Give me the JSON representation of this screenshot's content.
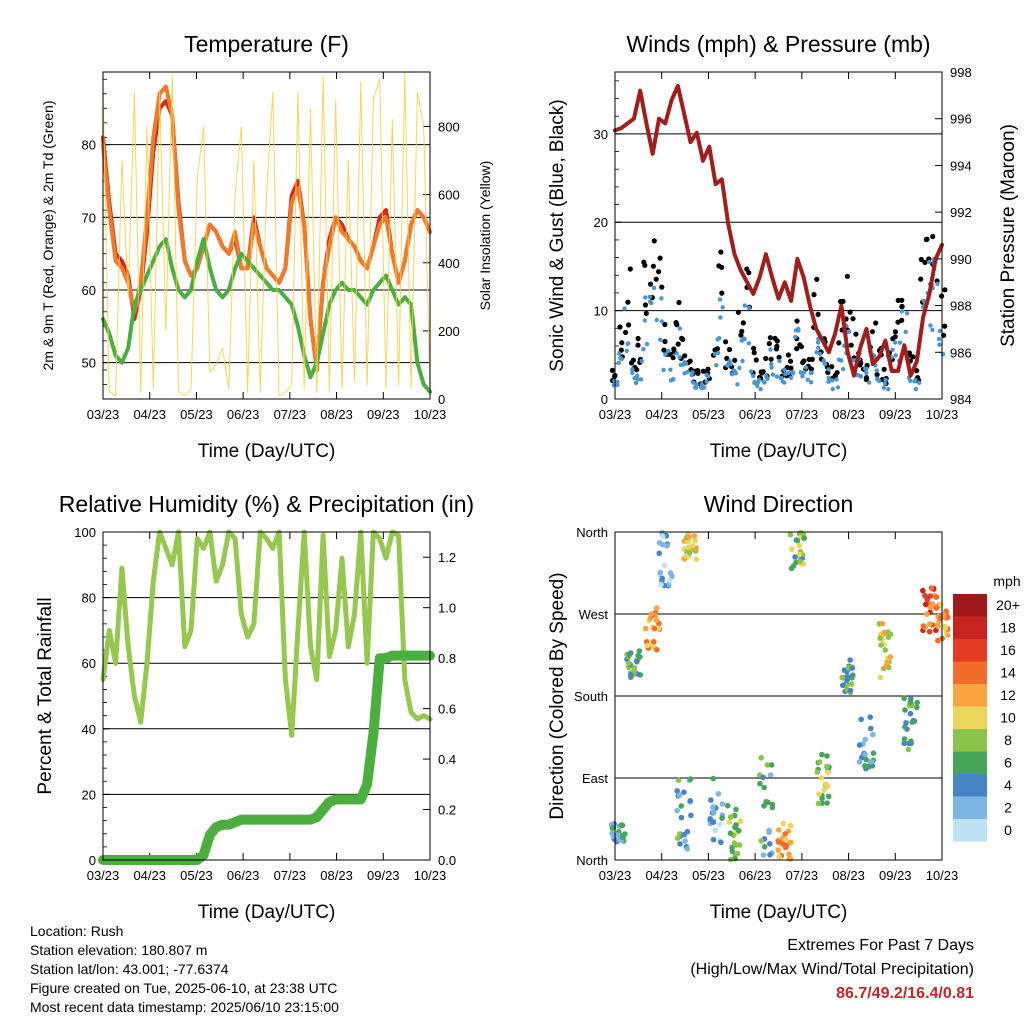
{
  "chart_data": [
    {
      "type": "line",
      "title": "Temperature (F)",
      "xlabel": "Time (Day/UTC)",
      "ylabel": "2m & 9m T (Red, Orange) & 2m Td (Green)",
      "ylabel_right": "Solar Insolation (Yellow)",
      "x_ticks": [
        "03/23",
        "04/23",
        "05/23",
        "06/23",
        "07/23",
        "08/23",
        "09/23",
        "10/23"
      ],
      "ylim": [
        45,
        90
      ],
      "y_ticks": [
        50,
        60,
        70,
        80
      ],
      "ylim_right": [
        0,
        960
      ],
      "y_ticks_right": [
        0,
        200,
        400,
        600,
        800
      ],
      "grid": "horizontal",
      "series": [
        {
          "color": "#d62718",
          "y_axis": "left",
          "values": [
            81,
            72,
            65,
            64,
            62,
            56,
            60,
            68,
            79,
            85,
            86,
            84,
            72,
            64,
            62,
            63,
            66,
            69,
            68,
            66,
            65,
            67,
            63,
            63,
            70,
            66,
            63,
            62,
            61,
            63,
            73,
            75,
            69,
            56,
            49,
            61,
            67,
            70,
            69,
            67,
            66,
            64,
            63,
            66,
            70,
            71,
            65,
            61,
            64,
            69,
            71,
            70,
            68
          ]
        },
        {
          "color": "#ef7a2c",
          "y_axis": "left",
          "values": [
            80,
            71,
            64,
            63,
            61,
            57,
            61,
            70,
            81,
            87,
            88,
            84,
            71,
            64,
            62,
            63,
            66,
            69,
            68,
            66,
            65,
            68,
            63,
            63,
            69,
            66,
            63,
            62,
            61,
            63,
            72,
            74,
            69,
            56,
            49,
            61,
            66,
            70,
            68,
            67,
            66,
            64,
            63,
            66,
            69,
            70,
            65,
            61,
            64,
            69,
            71,
            70,
            68
          ]
        },
        {
          "color": "#4aaf3e",
          "y_axis": "left",
          "values": [
            56,
            54,
            51,
            50,
            52,
            58,
            60,
            62,
            64,
            66,
            67,
            63,
            60,
            59,
            60,
            64,
            67,
            63,
            60,
            59,
            60,
            63,
            65,
            64,
            63,
            62,
            61,
            60,
            60,
            59,
            58,
            55,
            51,
            48,
            50,
            54,
            58,
            60,
            61,
            60,
            60,
            59,
            58,
            60,
            61,
            62,
            60,
            58,
            59,
            58,
            50,
            47,
            46
          ]
        },
        {
          "color": "#f4d24a",
          "y_axis": "right",
          "values": [
            900,
            20,
            10,
            700,
            300,
            900,
            20,
            800,
            30,
            900,
            200,
            950,
            20,
            10,
            30,
            650,
            800,
            80,
            100,
            150,
            30,
            600,
            800,
            20,
            700,
            20,
            600,
            900,
            10,
            20,
            40,
            900,
            30,
            850,
            20,
            950,
            20,
            880,
            30,
            700,
            50,
            930,
            40,
            880,
            940,
            30,
            820,
            40,
            970,
            30,
            900,
            800,
            20
          ]
        }
      ]
    },
    {
      "type": "scatter",
      "title": "Winds (mph) & Pressure (mb)",
      "xlabel": "Time (Day/UTC)",
      "ylabel": "Sonic Wind & Gust (Blue, Black)",
      "ylabel_right": "Station Pressure (Maroon)",
      "x_ticks": [
        "03/23",
        "04/23",
        "05/23",
        "06/23",
        "07/23",
        "08/23",
        "09/23",
        "10/23"
      ],
      "ylim": [
        0,
        37
      ],
      "y_ticks": [
        0,
        10,
        20,
        30
      ],
      "ylim_right": [
        984,
        998
      ],
      "y_ticks_right": [
        984,
        986,
        988,
        990,
        992,
        994,
        996,
        998
      ],
      "grid": "horizontal",
      "series": [
        {
          "color": "#000000",
          "y_axis": "left",
          "kind": "points",
          "values": [
            3,
            8,
            13,
            5,
            6,
            14,
            19,
            17,
            8,
            5,
            11,
            6,
            4,
            3,
            3,
            4,
            9,
            15,
            6,
            4,
            9,
            13,
            5,
            3,
            4,
            8,
            6,
            4,
            5,
            10,
            6,
            4,
            12,
            7,
            4,
            3,
            10,
            13,
            8,
            6,
            4,
            8,
            5,
            3,
            7,
            10,
            14,
            5,
            3,
            16,
            22,
            18,
            12
          ]
        },
        {
          "color": "#4b96d2",
          "y_axis": "left",
          "kind": "points",
          "values": [
            2,
            5,
            9,
            3,
            4,
            10,
            13,
            12,
            5,
            3,
            7,
            4,
            3,
            2,
            2,
            3,
            6,
            11,
            4,
            3,
            6,
            10,
            3,
            2,
            3,
            5,
            4,
            3,
            3,
            7,
            4,
            3,
            8,
            5,
            3,
            2,
            6,
            9,
            5,
            4,
            3,
            5,
            3,
            2,
            5,
            7,
            9,
            3,
            2,
            10,
            14,
            14,
            9
          ]
        },
        {
          "color": "#a11e1e",
          "y_axis": "right",
          "kind": "line",
          "values": [
            995.5,
            995.6,
            995.8,
            996,
            997.2,
            995.8,
            994.5,
            996,
            995.8,
            996.8,
            997.4,
            996.2,
            995,
            995.4,
            994.2,
            994.8,
            993.2,
            993.4,
            991.5,
            990.2,
            989.5,
            989,
            988.5,
            989.2,
            990.2,
            989.2,
            988.3,
            989,
            988.2,
            990,
            989.2,
            988,
            987,
            986.5,
            986,
            986.8,
            988,
            986,
            985,
            986.2,
            987,
            985.5,
            985.8,
            986.5,
            985.2,
            985.2,
            986.3,
            985,
            985.6,
            987.5,
            988.5,
            990,
            990.6
          ]
        }
      ]
    },
    {
      "type": "line",
      "title": "Relative Humidity (%) & Precipitation (in)",
      "xlabel": "Time (Day/UTC)",
      "ylabel": "Percent & Total Rainfall",
      "x_ticks": [
        "03/23",
        "04/23",
        "05/23",
        "06/23",
        "07/23",
        "08/23",
        "09/23",
        "10/23"
      ],
      "ylim": [
        0,
        100
      ],
      "y_ticks": [
        0,
        20,
        40,
        60,
        80,
        100
      ],
      "ylim_right": [
        0,
        1.3
      ],
      "y_ticks_right": [
        "0.0",
        "0.2",
        "0.4",
        "0.6",
        "0.8",
        "1.0",
        "1.2"
      ],
      "grid": "horizontal",
      "series": [
        {
          "color": "#96c850",
          "y_axis": "left",
          "values": [
            55,
            70,
            60,
            89,
            65,
            50,
            42,
            60,
            85,
            100,
            95,
            90,
            100,
            65,
            70,
            98,
            95,
            100,
            85,
            90,
            100,
            98,
            75,
            68,
            72,
            100,
            98,
            95,
            100,
            55,
            38,
            70,
            100,
            65,
            55,
            99,
            62,
            70,
            92,
            65,
            75,
            100,
            60,
            100,
            98,
            92,
            100,
            99,
            55,
            45,
            43,
            44,
            43
          ]
        },
        {
          "color": "#4aaf3e",
          "y_axis": "right",
          "values": [
            0,
            0,
            0,
            0,
            0,
            0,
            0,
            0,
            0,
            0,
            0,
            0,
            0,
            0,
            0,
            0,
            0.02,
            0.1,
            0.13,
            0.14,
            0.14,
            0.15,
            0.16,
            0.16,
            0.16,
            0.16,
            0.16,
            0.16,
            0.16,
            0.16,
            0.16,
            0.16,
            0.16,
            0.16,
            0.17,
            0.2,
            0.23,
            0.24,
            0.24,
            0.24,
            0.24,
            0.24,
            0.3,
            0.5,
            0.8,
            0.8,
            0.81,
            0.81,
            0.81,
            0.81,
            0.81,
            0.81,
            0.81
          ]
        }
      ]
    },
    {
      "type": "scatter",
      "title": "Wind Direction",
      "xlabel": "Time (Day/UTC)",
      "ylabel": "Direction (Colored By Speed)",
      "x_ticks": [
        "03/23",
        "04/23",
        "05/23",
        "06/23",
        "07/23",
        "08/23",
        "09/23",
        "10/23"
      ],
      "y_ticks": [
        "North",
        "East",
        "South",
        "West",
        "North"
      ],
      "ylim": [
        0,
        360
      ],
      "grid": "horizontal",
      "colorbar_title": "mph",
      "colorbar_labels": [
        "20+",
        "18",
        "16",
        "14",
        "12",
        "10",
        "8",
        "6",
        "4",
        "2",
        "0"
      ],
      "colorbar_colors": [
        "#9e1a1a",
        "#c8241f",
        "#e33d26",
        "#f26c2c",
        "#f9a440",
        "#ead659",
        "#8cc34a",
        "#45a65a",
        "#4584c6",
        "#7cb6e3",
        "#bfe2f5"
      ],
      "clusters": [
        {
          "t": 0.5,
          "dir": [
            20,
            40,
            140,
            150
          ],
          "speed": 4
        },
        {
          "t": 3,
          "dir": [
            200,
            230
          ],
          "speed": 6
        },
        {
          "t": 6,
          "dir": [
            230,
            280
          ],
          "speed": 12
        },
        {
          "t": 8,
          "dir": [
            300,
            360
          ],
          "speed": 2
        },
        {
          "t": 11,
          "dir": [
            5,
            90
          ],
          "speed": 5
        },
        {
          "t": 12,
          "dir": [
            330,
            360
          ],
          "speed": 10
        },
        {
          "t": 16,
          "dir": [
            10,
            90
          ],
          "speed": 3
        },
        {
          "t": 19,
          "dir": [
            0,
            60
          ],
          "speed": 8
        },
        {
          "t": 24,
          "dir": [
            0,
            120
          ],
          "speed": 5
        },
        {
          "t": 27,
          "dir": [
            0,
            40
          ],
          "speed": 12
        },
        {
          "t": 29,
          "dir": [
            320,
            360
          ],
          "speed": 7
        },
        {
          "t": 33,
          "dir": [
            60,
            120
          ],
          "speed": 8
        },
        {
          "t": 37,
          "dir": [
            180,
            220
          ],
          "speed": 6
        },
        {
          "t": 40,
          "dir": [
            100,
            160
          ],
          "speed": 4
        },
        {
          "t": 43,
          "dir": [
            200,
            260
          ],
          "speed": 10
        },
        {
          "t": 47,
          "dir": [
            120,
            180
          ],
          "speed": 5
        },
        {
          "t": 50,
          "dir": [
            250,
            300
          ],
          "speed": 15
        },
        {
          "t": 52,
          "dir": [
            240,
            290
          ],
          "speed": 12
        }
      ]
    }
  ],
  "info": {
    "location": "Location: Rush",
    "elevation": "Station elevation: 180.807 m",
    "latlon": "Station lat/lon: 43.001; -77.6374",
    "created": "Figure created on Tue, 2025-06-10, at 23:38 UTC",
    "recent": "Most recent data timestamp: 2025/06/10 23:15:00"
  },
  "extremes": {
    "title": "Extremes For Past 7 Days",
    "subtitle": "(High/Low/Max Wind/Total Precipitation)",
    "values": "86.7/49.2/16.4/0.81"
  }
}
